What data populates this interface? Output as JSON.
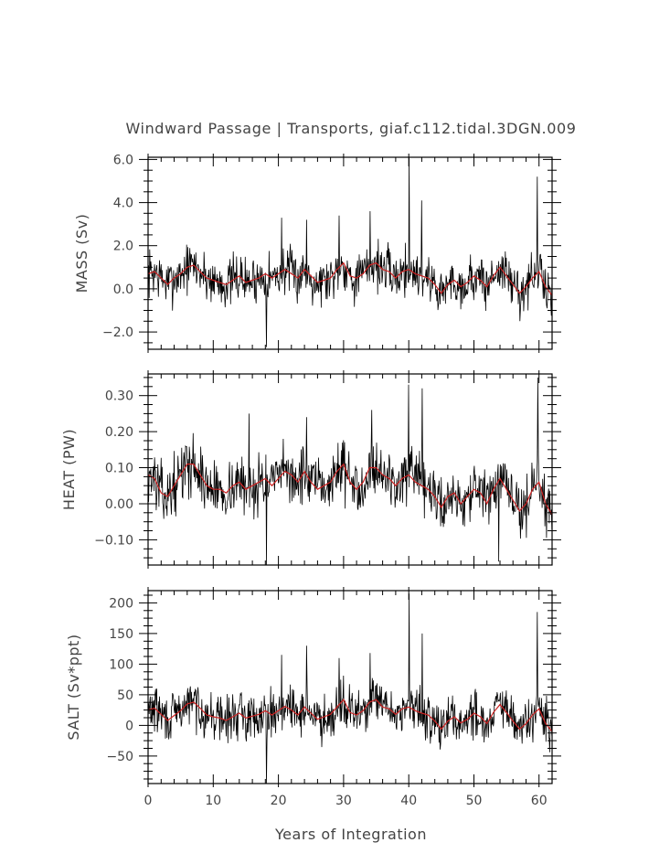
{
  "chart_data": {
    "type": "line",
    "title": "Windward Passage | Transports, giaf.c112.tidal.3DGN.009",
    "xlabel": "Years of Integration",
    "xlim": [
      0,
      62
    ],
    "xticks": [
      0,
      10,
      20,
      30,
      40,
      50,
      60
    ],
    "xtick_labels": [
      "0",
      "10",
      "20",
      "30",
      "40",
      "50",
      "60"
    ],
    "x_step_years": 0.0833,
    "panels": [
      {
        "name": "mass",
        "ylabel": "MASS (Sv)",
        "ylim": [
          -2.8,
          6.1
        ],
        "yticks": [
          -2,
          0,
          2,
          4,
          6
        ],
        "ytick_labels": [
          "−2.0",
          "0.0",
          "2.0",
          "4.0",
          "6.0"
        ],
        "monthly_color": "#000000",
        "smoothed_color": "#cc2222",
        "smoothed": [
          [
            0,
            0.7
          ],
          [
            1,
            0.8
          ],
          [
            2,
            0.5
          ],
          [
            3,
            0.2
          ],
          [
            4,
            0.5
          ],
          [
            5,
            0.7
          ],
          [
            6,
            1.0
          ],
          [
            7,
            1.1
          ],
          [
            8,
            0.8
          ],
          [
            9,
            0.5
          ],
          [
            10,
            0.4
          ],
          [
            11,
            0.3
          ],
          [
            12,
            0.2
          ],
          [
            13,
            0.4
          ],
          [
            14,
            0.6
          ],
          [
            15,
            0.3
          ],
          [
            16,
            0.4
          ],
          [
            17,
            0.5
          ],
          [
            18,
            0.7
          ],
          [
            19,
            0.5
          ],
          [
            20,
            0.7
          ],
          [
            21,
            0.9
          ],
          [
            22,
            0.7
          ],
          [
            23,
            0.5
          ],
          [
            24,
            0.9
          ],
          [
            25,
            0.6
          ],
          [
            26,
            0.3
          ],
          [
            27,
            0.4
          ],
          [
            28,
            0.5
          ],
          [
            29,
            0.9
          ],
          [
            30,
            1.2
          ],
          [
            31,
            0.6
          ],
          [
            32,
            0.5
          ],
          [
            33,
            0.7
          ],
          [
            34,
            1.1
          ],
          [
            35,
            1.2
          ],
          [
            36,
            0.9
          ],
          [
            37,
            0.8
          ],
          [
            38,
            0.5
          ],
          [
            39,
            0.8
          ],
          [
            40,
            0.9
          ],
          [
            41,
            0.7
          ],
          [
            42,
            0.6
          ],
          [
            43,
            0.5
          ],
          [
            44,
            0.2
          ],
          [
            45,
            -0.2
          ],
          [
            46,
            0.2
          ],
          [
            47,
            0.4
          ],
          [
            48,
            0.1
          ],
          [
            49,
            0.3
          ],
          [
            50,
            0.6
          ],
          [
            51,
            0.4
          ],
          [
            52,
            0.1
          ],
          [
            53,
            0.6
          ],
          [
            54,
            1.0
          ],
          [
            55,
            0.6
          ],
          [
            56,
            0.2
          ],
          [
            57,
            -0.2
          ],
          [
            58,
            0.1
          ],
          [
            59,
            0.5
          ],
          [
            60,
            0.8
          ],
          [
            61,
            0.1
          ],
          [
            62,
            -0.3
          ]
        ],
        "spikes": [
          [
            18.2,
            -2.7
          ],
          [
            20.5,
            3.3
          ],
          [
            24.3,
            3.2
          ],
          [
            29.3,
            3.4
          ],
          [
            34.1,
            3.6
          ],
          [
            40.1,
            6.1
          ],
          [
            42.0,
            4.1
          ],
          [
            59.7,
            5.2
          ]
        ],
        "noise_amp": 0.8,
        "seed": 7
      },
      {
        "name": "heat",
        "ylabel": "HEAT (PW)",
        "ylim": [
          -0.17,
          0.36
        ],
        "yticks": [
          -0.1,
          0.0,
          0.1,
          0.2,
          0.3
        ],
        "ytick_labels": [
          "−0.10",
          "0.00",
          "0.10",
          "0.20",
          "0.30"
        ],
        "monthly_color": "#000000",
        "smoothed_color": "#cc2222",
        "smoothed": [
          [
            0,
            0.08
          ],
          [
            1,
            0.07
          ],
          [
            2,
            0.03
          ],
          [
            3,
            0.02
          ],
          [
            4,
            0.05
          ],
          [
            5,
            0.08
          ],
          [
            6,
            0.11
          ],
          [
            7,
            0.11
          ],
          [
            8,
            0.08
          ],
          [
            9,
            0.05
          ],
          [
            10,
            0.04
          ],
          [
            11,
            0.04
          ],
          [
            12,
            0.03
          ],
          [
            13,
            0.05
          ],
          [
            14,
            0.06
          ],
          [
            15,
            0.04
          ],
          [
            16,
            0.05
          ],
          [
            17,
            0.06
          ],
          [
            18,
            0.07
          ],
          [
            19,
            0.05
          ],
          [
            20,
            0.07
          ],
          [
            21,
            0.09
          ],
          [
            22,
            0.08
          ],
          [
            23,
            0.06
          ],
          [
            24,
            0.09
          ],
          [
            25,
            0.06
          ],
          [
            26,
            0.04
          ],
          [
            27,
            0.05
          ],
          [
            28,
            0.06
          ],
          [
            29,
            0.09
          ],
          [
            30,
            0.11
          ],
          [
            31,
            0.06
          ],
          [
            32,
            0.04
          ],
          [
            33,
            0.06
          ],
          [
            34,
            0.1
          ],
          [
            35,
            0.1
          ],
          [
            36,
            0.08
          ],
          [
            37,
            0.07
          ],
          [
            38,
            0.05
          ],
          [
            39,
            0.07
          ],
          [
            40,
            0.08
          ],
          [
            41,
            0.06
          ],
          [
            42,
            0.05
          ],
          [
            43,
            0.04
          ],
          [
            44,
            0.02
          ],
          [
            45,
            -0.01
          ],
          [
            46,
            0.02
          ],
          [
            47,
            0.03
          ],
          [
            48,
            0.0
          ],
          [
            49,
            0.02
          ],
          [
            50,
            0.04
          ],
          [
            51,
            0.03
          ],
          [
            52,
            0.0
          ],
          [
            53,
            0.04
          ],
          [
            54,
            0.07
          ],
          [
            55,
            0.04
          ],
          [
            56,
            0.01
          ],
          [
            57,
            -0.02
          ],
          [
            58,
            0.0
          ],
          [
            59,
            0.04
          ],
          [
            60,
            0.06
          ],
          [
            61,
            0.0
          ],
          [
            62,
            -0.03
          ]
        ],
        "spikes": [
          [
            18.2,
            -0.17
          ],
          [
            15.5,
            0.25
          ],
          [
            24.3,
            0.24
          ],
          [
            34.3,
            0.26
          ],
          [
            40.0,
            0.33
          ],
          [
            42.1,
            0.32
          ],
          [
            53.8,
            -0.16
          ],
          [
            59.8,
            0.35
          ]
        ],
        "noise_amp": 0.055,
        "seed": 13
      },
      {
        "name": "salt",
        "ylabel": "SALT (Sv*ppt)",
        "ylim": [
          -95,
          220
        ],
        "yticks": [
          -50,
          0,
          50,
          100,
          150,
          200
        ],
        "ytick_labels": [
          "−50",
          "0",
          "50",
          "100",
          "150",
          "200"
        ],
        "monthly_color": "#000000",
        "smoothed_color": "#cc2222",
        "smoothed": [
          [
            0,
            25
          ],
          [
            1,
            28
          ],
          [
            2,
            18
          ],
          [
            3,
            8
          ],
          [
            4,
            16
          ],
          [
            5,
            24
          ],
          [
            6,
            35
          ],
          [
            7,
            38
          ],
          [
            8,
            28
          ],
          [
            9,
            17
          ],
          [
            10,
            14
          ],
          [
            11,
            12
          ],
          [
            12,
            8
          ],
          [
            13,
            14
          ],
          [
            14,
            20
          ],
          [
            15,
            12
          ],
          [
            16,
            15
          ],
          [
            17,
            18
          ],
          [
            18,
            24
          ],
          [
            19,
            17
          ],
          [
            20,
            24
          ],
          [
            21,
            31
          ],
          [
            22,
            25
          ],
          [
            23,
            17
          ],
          [
            24,
            30
          ],
          [
            25,
            20
          ],
          [
            26,
            10
          ],
          [
            27,
            14
          ],
          [
            28,
            18
          ],
          [
            29,
            30
          ],
          [
            30,
            42
          ],
          [
            31,
            21
          ],
          [
            32,
            17
          ],
          [
            33,
            24
          ],
          [
            34,
            38
          ],
          [
            35,
            42
          ],
          [
            36,
            30
          ],
          [
            37,
            27
          ],
          [
            38,
            18
          ],
          [
            39,
            27
          ],
          [
            40,
            30
          ],
          [
            41,
            24
          ],
          [
            42,
            20
          ],
          [
            43,
            17
          ],
          [
            44,
            7
          ],
          [
            45,
            -6
          ],
          [
            46,
            7
          ],
          [
            47,
            14
          ],
          [
            48,
            4
          ],
          [
            49,
            10
          ],
          [
            50,
            20
          ],
          [
            51,
            14
          ],
          [
            52,
            3
          ],
          [
            53,
            21
          ],
          [
            54,
            34
          ],
          [
            55,
            21
          ],
          [
            56,
            7
          ],
          [
            57,
            -6
          ],
          [
            58,
            3
          ],
          [
            59,
            17
          ],
          [
            60,
            27
          ],
          [
            61,
            3
          ],
          [
            62,
            -10
          ]
        ],
        "spikes": [
          [
            18.2,
            -95
          ],
          [
            20.5,
            115
          ],
          [
            24.3,
            130
          ],
          [
            29.3,
            110
          ],
          [
            34.1,
            118
          ],
          [
            40.1,
            215
          ],
          [
            42.1,
            150
          ],
          [
            59.7,
            185
          ]
        ],
        "noise_amp": 27,
        "seed": 29
      }
    ]
  }
}
